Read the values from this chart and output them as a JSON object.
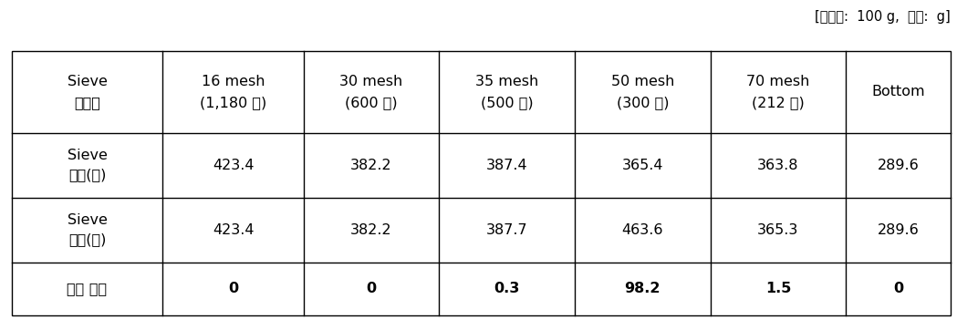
{
  "caption": "[샘플양:  100 g,  단위:  g]",
  "col_headers_line1": [
    "Sieve",
    "16 mesh",
    "30 mesh",
    "35 mesh",
    "50 mesh",
    "70 mesh",
    "Bottom"
  ],
  "col_headers_line2": [
    "사이즈",
    "(1,180 ㎳)",
    "(600 ㎳)",
    "(500 ㎳)",
    "(300 ㎳)",
    "(212 ㎳)",
    ""
  ],
  "row1_label_line1": "Sieve",
  "row1_label_line2": "무게(전)",
  "row1_values": [
    "423.4",
    "382.2",
    "387.4",
    "365.4",
    "363.8",
    "289.6"
  ],
  "row2_label_line1": "Sieve",
  "row2_label_line2": "무게(후)",
  "row2_values": [
    "423.4",
    "382.2",
    "387.7",
    "463.6",
    "365.3",
    "289.6"
  ],
  "row3_label": "제품 무게",
  "row3_values": [
    "0",
    "0",
    "0.3",
    "98.2",
    "1.5",
    "0"
  ],
  "bg_color": "#ffffff",
  "line_color": "#000000",
  "text_color": "#000000",
  "fontsize": 11.5,
  "caption_fontsize": 10.5
}
